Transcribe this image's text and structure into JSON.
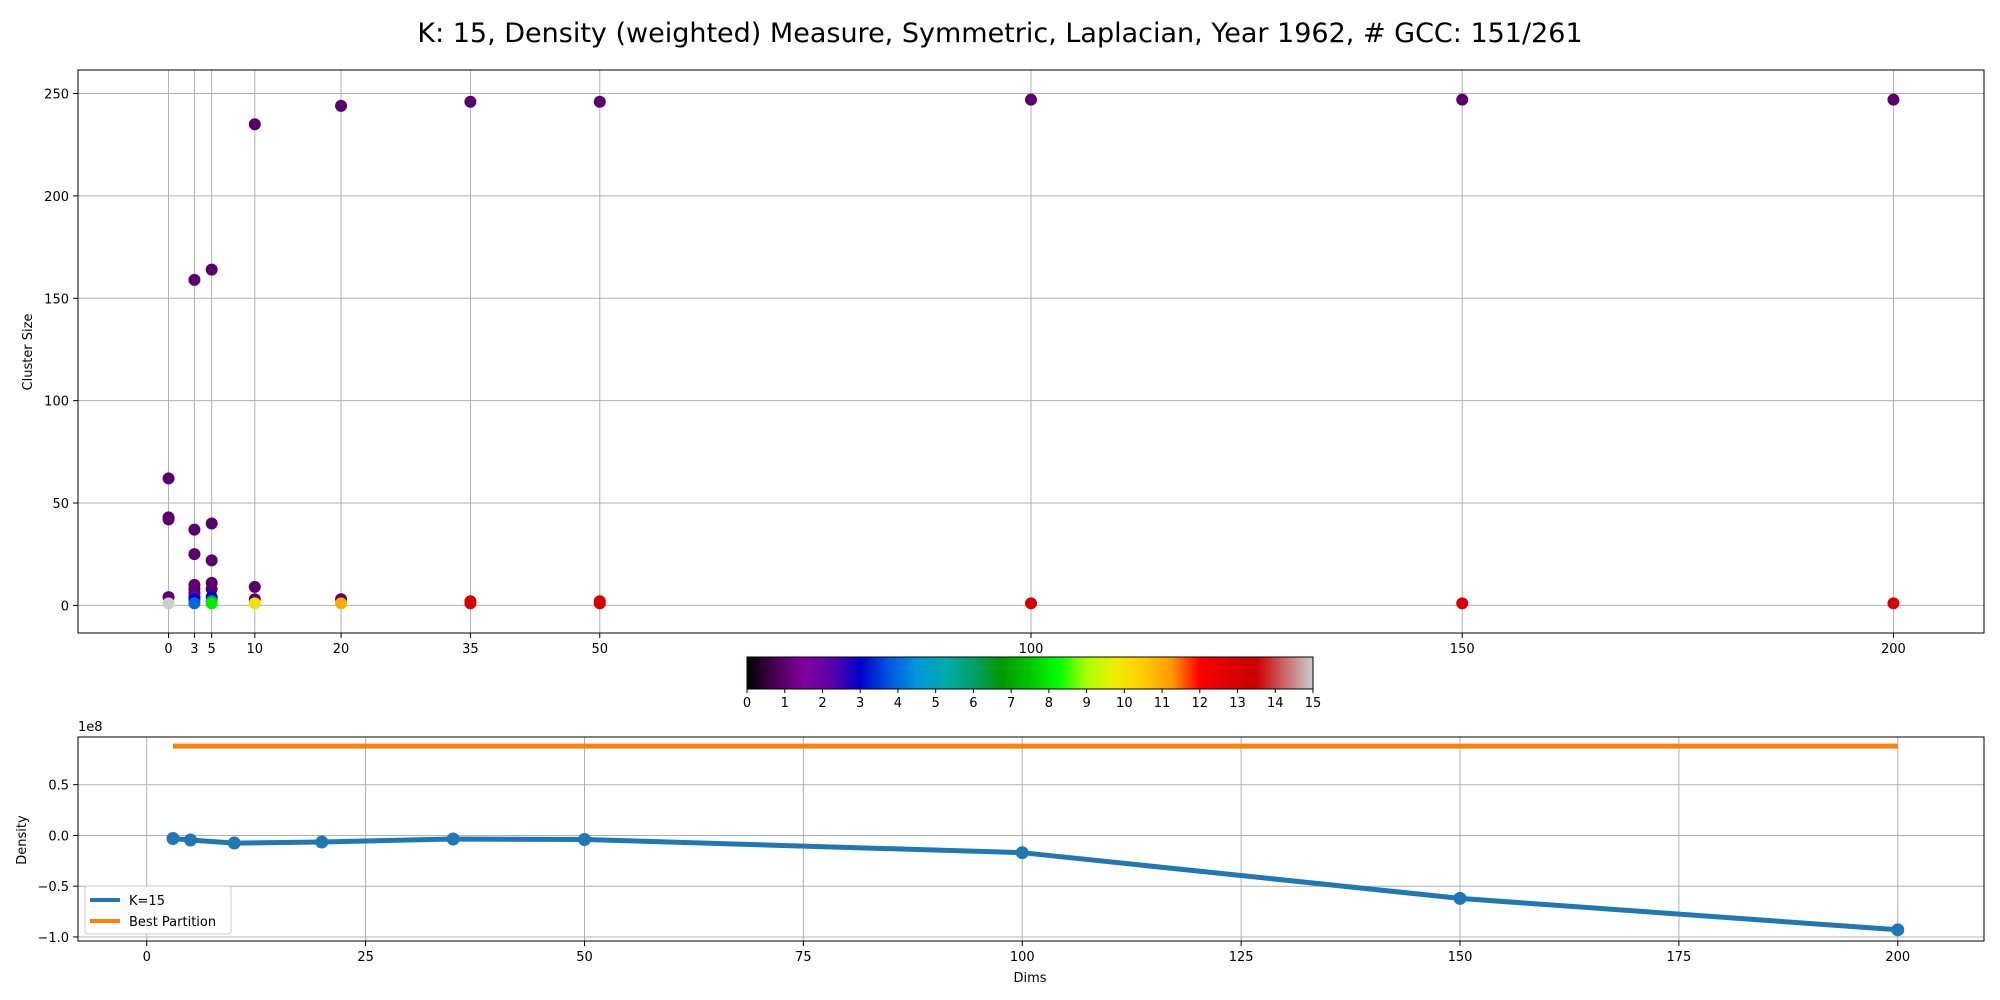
{
  "title": "K: 15, Density (weighted) Measure, Symmetric, Laplacian, Year 1962, # GCC: 151/261",
  "chart_data": [
    {
      "type": "scatter",
      "ylabel": "Cluster Size",
      "xlabel": "",
      "x_ticks": [
        0,
        3,
        5,
        10,
        20,
        35,
        50,
        100,
        150,
        200
      ],
      "y_ticks": [
        0,
        50,
        100,
        150,
        200,
        250
      ],
      "xlim": [
        -10.5,
        210.5
      ],
      "ylim": [
        -13.5,
        261.5
      ],
      "grid": "x-at-dims-and-y",
      "colormap": "nipy_spectral",
      "color_range": [
        0,
        15
      ],
      "points": [
        {
          "x": 0,
          "y": 62,
          "c": 1
        },
        {
          "x": 0,
          "y": 43,
          "c": 1
        },
        {
          "x": 0,
          "y": 42,
          "c": 1
        },
        {
          "x": 0,
          "y": 4,
          "c": 1
        },
        {
          "x": 0,
          "y": 1,
          "c": 15
        },
        {
          "x": 3,
          "y": 159,
          "c": 1
        },
        {
          "x": 3,
          "y": 37,
          "c": 1
        },
        {
          "x": 3,
          "y": 25,
          "c": 1
        },
        {
          "x": 3,
          "y": 10,
          "c": 1
        },
        {
          "x": 3,
          "y": 8,
          "c": 1
        },
        {
          "x": 3,
          "y": 6,
          "c": 1
        },
        {
          "x": 3,
          "y": 4,
          "c": 2
        },
        {
          "x": 3,
          "y": 3,
          "c": 3
        },
        {
          "x": 3,
          "y": 1,
          "c": 4
        },
        {
          "x": 5,
          "y": 164,
          "c": 1
        },
        {
          "x": 5,
          "y": 40,
          "c": 1
        },
        {
          "x": 5,
          "y": 22,
          "c": 1
        },
        {
          "x": 5,
          "y": 11,
          "c": 1
        },
        {
          "x": 5,
          "y": 8,
          "c": 1
        },
        {
          "x": 5,
          "y": 4,
          "c": 3
        },
        {
          "x": 5,
          "y": 2,
          "c": 6
        },
        {
          "x": 5,
          "y": 1,
          "c": 8
        },
        {
          "x": 10,
          "y": 235,
          "c": 1
        },
        {
          "x": 10,
          "y": 9,
          "c": 1
        },
        {
          "x": 10,
          "y": 3,
          "c": 1
        },
        {
          "x": 10,
          "y": 1,
          "c": 10
        },
        {
          "x": 20,
          "y": 244,
          "c": 1
        },
        {
          "x": 20,
          "y": 3,
          "c": 1
        },
        {
          "x": 20,
          "y": 1,
          "c": 11
        },
        {
          "x": 35,
          "y": 246,
          "c": 1
        },
        {
          "x": 35,
          "y": 2,
          "c": 13
        },
        {
          "x": 35,
          "y": 1,
          "c": 13
        },
        {
          "x": 50,
          "y": 246,
          "c": 1
        },
        {
          "x": 50,
          "y": 2,
          "c": 13
        },
        {
          "x": 50,
          "y": 1,
          "c": 13
        },
        {
          "x": 100,
          "y": 247,
          "c": 1
        },
        {
          "x": 100,
          "y": 1,
          "c": 13
        },
        {
          "x": 150,
          "y": 247,
          "c": 1
        },
        {
          "x": 150,
          "y": 1,
          "c": 13
        },
        {
          "x": 200,
          "y": 247,
          "c": 1
        },
        {
          "x": 200,
          "y": 1,
          "c": 13
        }
      ]
    },
    {
      "type": "colorbar",
      "ticks": [
        0,
        1,
        2,
        3,
        4,
        5,
        6,
        7,
        8,
        9,
        10,
        11,
        12,
        13,
        14,
        15
      ],
      "range": [
        0,
        15
      ]
    },
    {
      "type": "line",
      "xlabel": "Dims",
      "ylabel": "Density",
      "offset_label": "1e8",
      "x_ticks": [
        0,
        25,
        50,
        75,
        100,
        125,
        150,
        175,
        200
      ],
      "y_ticks": [
        -1.0,
        -0.5,
        0.0,
        0.5
      ],
      "y_tick_labels": [
        "−1.0",
        "−0.5",
        "0.0",
        "0.5"
      ],
      "xlim": [
        -7.85,
        209.85
      ],
      "ylim": [
        -1.04,
        0.97
      ],
      "grid": true,
      "legend_position": "lower-left",
      "series": [
        {
          "name": "K=15",
          "color": "#1f77b4",
          "x": [
            3,
            5,
            10,
            20,
            35,
            50,
            100,
            150,
            200
          ],
          "y": [
            -0.03,
            -0.045,
            -0.075,
            -0.065,
            -0.035,
            -0.04,
            -0.17,
            -0.62,
            -0.93
          ],
          "markers": true
        },
        {
          "name": "Best Partition",
          "color": "#ff7f0e",
          "x": [
            3,
            200
          ],
          "y": [
            0.88,
            0.88
          ],
          "markers": false
        }
      ]
    }
  ]
}
